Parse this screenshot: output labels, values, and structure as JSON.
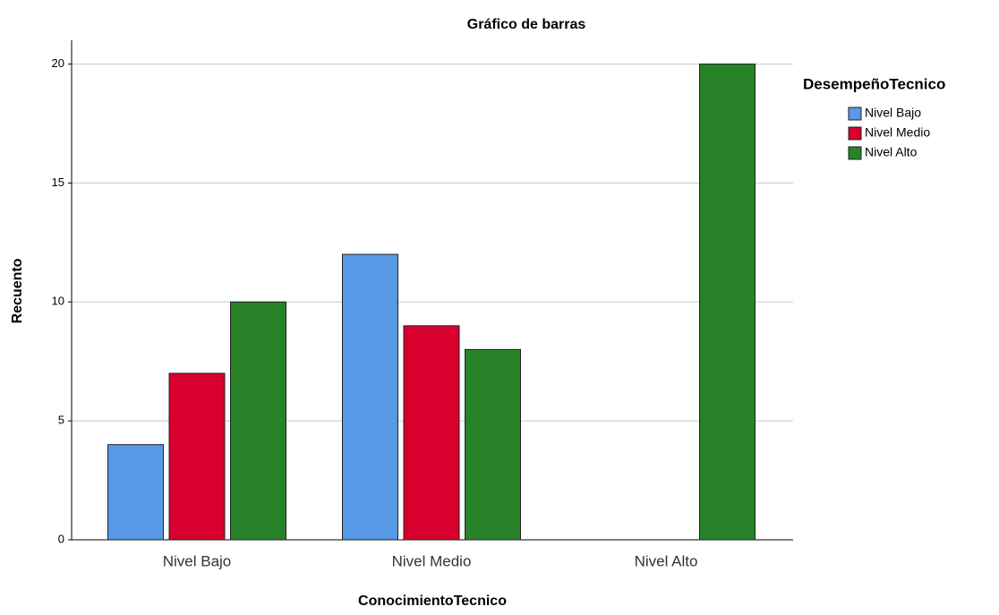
{
  "chart_data": {
    "type": "bar",
    "title": "Gráfico de barras",
    "x_label": "ConocimientoTecnico",
    "y_label": "Recuento",
    "legend_title": "DesempeñoTecnico",
    "categories": [
      "Nivel Bajo",
      "Nivel Medio",
      "Nivel Alto"
    ],
    "series": [
      {
        "name": "Nivel Bajo",
        "color": "#5799e5",
        "values": [
          4,
          12,
          0
        ]
      },
      {
        "name": "Nivel Medio",
        "color": "#d8002e",
        "values": [
          7,
          9,
          0
        ]
      },
      {
        "name": "Nivel Alto",
        "color": "#288228",
        "values": [
          10,
          8,
          20
        ]
      }
    ],
    "ylim": [
      0,
      21
    ],
    "yticks": [
      0,
      5,
      10,
      15,
      20
    ],
    "grid": true,
    "legend": "right"
  }
}
